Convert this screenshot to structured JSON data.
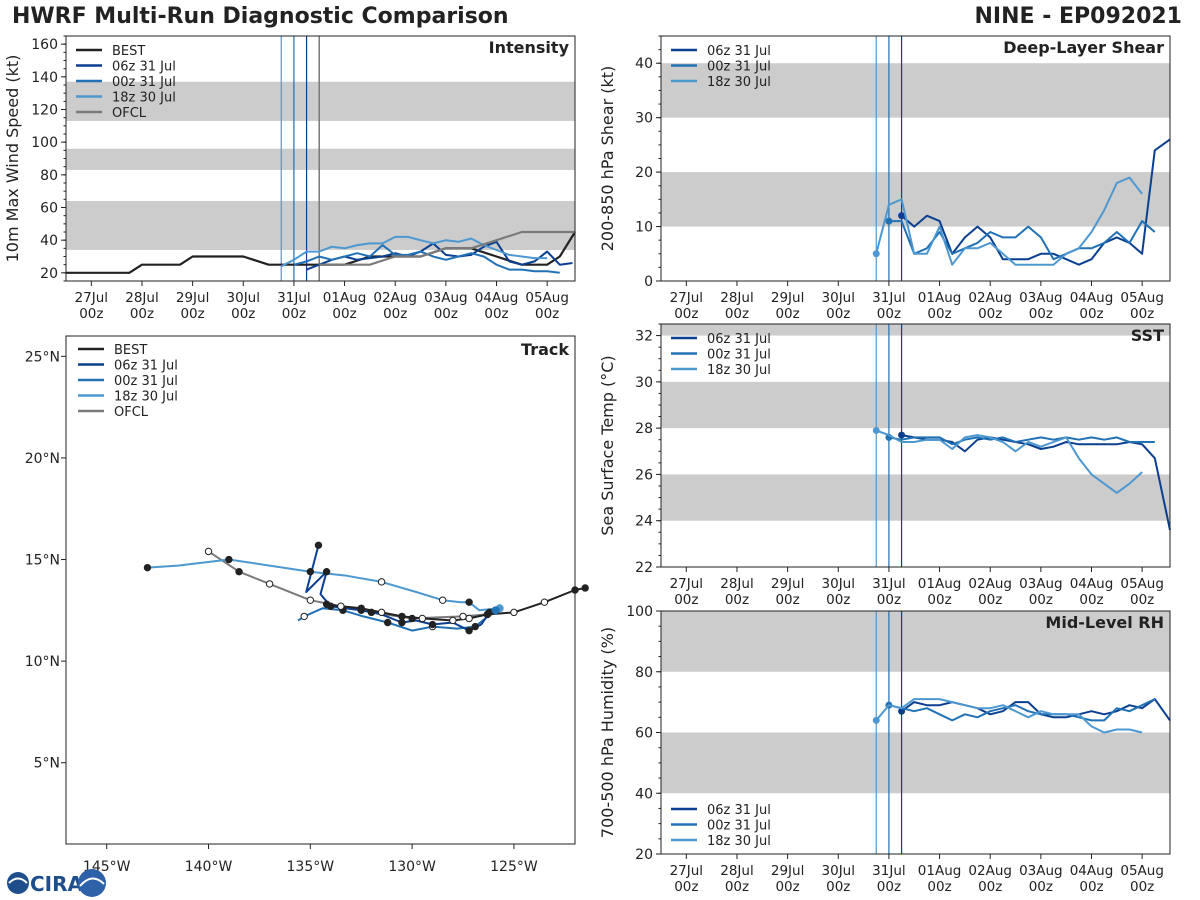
{
  "header": {
    "title": "HWRF Multi-Run Diagnostic Comparison",
    "storm_id": "NINE - EP092021"
  },
  "colors": {
    "BEST": "#222222",
    "06z 31 Jul": "#0b3f8f",
    "00z 31 Jul": "#2171b5",
    "18z 30 Jul": "#4d98d0",
    "OFCL": "#7a7a7a",
    "band": "#cccccc"
  },
  "time_axis": {
    "units": "days since 27Jul 00z",
    "xlim": [
      -0.5,
      9.55
    ],
    "ticks": [
      0,
      1,
      2,
      3,
      4,
      5,
      6,
      7,
      8,
      9
    ],
    "tick_labels": [
      "27Jul\n00z",
      "28Jul\n00z",
      "29Jul\n00z",
      "30Jul\n00z",
      "31Jul\n00z",
      "01Aug\n00z",
      "02Aug\n00z",
      "03Aug\n00z",
      "04Aug\n00z",
      "05Aug\n00z"
    ],
    "init_lines": [
      {
        "run": "18z 30 Jul",
        "t": 3.75
      },
      {
        "run": "00z 31 Jul",
        "t": 4.0
      },
      {
        "run": "06z 31 Jul",
        "t": 4.25
      }
    ],
    "ofcl_line": 4.5
  },
  "chart_data": [
    {
      "type": "line",
      "panel": "intensity",
      "title": "Intensity",
      "ylabel": "10m Max Wind Speed (kt)",
      "ylim": [
        15,
        165
      ],
      "yticks": [
        20,
        40,
        60,
        80,
        100,
        120,
        140,
        160
      ],
      "bands": [
        [
          34,
          64
        ],
        [
          83,
          96
        ],
        [
          113,
          137
        ]
      ],
      "legend": [
        "BEST",
        "06z 31 Jul",
        "00z 31 Jul",
        "18z 30 Jul",
        "OFCL"
      ],
      "series": [
        {
          "name": "BEST",
          "x": [
            -0.5,
            0.75,
            1.0,
            1.75,
            2.0,
            2.5,
            3.0,
            3.5,
            4.0,
            4.5,
            5.0,
            5.5,
            6.0,
            6.5,
            7.0,
            7.5,
            8.0,
            8.5,
            9.0,
            9.25,
            9.55
          ],
          "y": [
            20,
            20,
            25,
            25,
            30,
            30,
            30,
            25,
            25,
            25,
            25,
            30,
            30,
            30,
            35,
            35,
            30,
            25,
            25,
            30,
            45
          ]
        },
        {
          "name": "06z 31 Jul",
          "x": [
            4.25,
            4.5,
            4.75,
            5.0,
            5.25,
            5.5,
            5.75,
            6.0,
            6.25,
            6.5,
            6.75,
            7.0,
            7.25,
            7.5,
            7.75,
            8.0,
            8.25,
            8.5,
            8.75,
            9.0,
            9.25,
            9.5
          ],
          "y": [
            22,
            25,
            28,
            30,
            28,
            29,
            30,
            32,
            30,
            33,
            38,
            31,
            30,
            31,
            36,
            39,
            27,
            25,
            27,
            33,
            25,
            26
          ]
        },
        {
          "name": "00z 31 Jul",
          "x": [
            4.0,
            4.25,
            4.5,
            4.75,
            5.0,
            5.25,
            5.5,
            5.75,
            6.0,
            6.25,
            6.5,
            6.75,
            7.0,
            7.25,
            7.5,
            7.75,
            8.0,
            8.25,
            8.5,
            8.75,
            9.0,
            9.25
          ],
          "y": [
            25,
            27,
            30,
            28,
            30,
            32,
            30,
            37,
            31,
            31,
            33,
            30,
            28,
            30,
            32,
            30,
            25,
            22,
            22,
            21,
            21,
            20
          ]
        },
        {
          "name": "18z 30 Jul",
          "x": [
            3.75,
            4.0,
            4.25,
            4.5,
            4.75,
            5.0,
            5.25,
            5.5,
            5.75,
            6.0,
            6.25,
            6.5,
            6.75,
            7.0,
            7.25,
            7.5,
            7.75,
            8.0,
            8.25,
            8.5,
            8.75,
            9.0
          ],
          "y": [
            24,
            28,
            33,
            33,
            36,
            35,
            37,
            38,
            38,
            42,
            42,
            40,
            38,
            40,
            39,
            41,
            37,
            34,
            31,
            30,
            29,
            29
          ]
        },
        {
          "name": "OFCL",
          "x": [
            4.5,
            5.0,
            5.5,
            6.0,
            6.5,
            7.0,
            7.5,
            8.0,
            8.5,
            9.0,
            9.55
          ],
          "y": [
            25,
            25,
            25,
            30,
            30,
            35,
            35,
            40,
            45,
            45,
            45
          ]
        }
      ]
    },
    {
      "type": "line",
      "panel": "shear",
      "title": "Deep-Layer Shear",
      "ylabel": "200-850 hPa Shear (kt)",
      "ylim": [
        0,
        45
      ],
      "yticks": [
        0,
        10,
        20,
        30,
        40
      ],
      "bands": [
        [
          10,
          20
        ],
        [
          30,
          40
        ]
      ],
      "legend": [
        "06z 31 Jul",
        "00z 31 Jul",
        "18z 30 Jul"
      ],
      "series": [
        {
          "name": "06z 31 Jul",
          "x": [
            4.25,
            4.5,
            4.75,
            5.0,
            5.25,
            5.5,
            5.75,
            6.0,
            6.25,
            6.5,
            6.75,
            7.0,
            7.25,
            7.5,
            7.75,
            8.0,
            8.25,
            8.5,
            8.75,
            9.0,
            9.25,
            9.55
          ],
          "y": [
            12,
            10,
            12,
            11,
            5,
            8,
            10,
            8,
            4,
            4,
            4,
            5,
            5,
            4,
            3,
            4,
            7,
            8,
            7,
            5,
            24,
            26
          ]
        },
        {
          "name": "00z 31 Jul",
          "x": [
            4.0,
            4.25,
            4.5,
            4.75,
            5.0,
            5.25,
            5.5,
            5.75,
            6.0,
            6.25,
            6.5,
            6.75,
            7.0,
            7.25,
            7.5,
            7.75,
            8.0,
            8.25,
            8.5,
            8.75,
            9.0,
            9.25
          ],
          "y": [
            11,
            11,
            5,
            6,
            9,
            5,
            6,
            7,
            9,
            8,
            8,
            10,
            8,
            4,
            5,
            6,
            6,
            7,
            9,
            7,
            11,
            9
          ]
        },
        {
          "name": "18z 30 Jul",
          "x": [
            3.75,
            4.0,
            4.25,
            4.5,
            4.75,
            5.0,
            5.25,
            5.5,
            5.75,
            6.0,
            6.25,
            6.5,
            6.75,
            7.0,
            7.25,
            7.5,
            7.75,
            8.0,
            8.25,
            8.5,
            8.75,
            9.0
          ],
          "y": [
            5,
            14,
            15,
            5,
            5,
            10,
            3,
            6,
            6,
            7,
            5,
            3,
            3,
            3,
            3,
            5,
            6,
            9,
            13,
            18,
            19,
            16
          ]
        }
      ]
    },
    {
      "type": "line",
      "panel": "sst",
      "title": "SST",
      "ylabel": "Sea Surface Temp (°C)",
      "ylim": [
        22,
        32.5
      ],
      "yticks": [
        22,
        24,
        26,
        28,
        30,
        32
      ],
      "bands": [
        [
          24,
          26
        ],
        [
          28,
          30
        ],
        [
          32,
          32.5
        ]
      ],
      "legend": [
        "06z 31 Jul",
        "00z 31 Jul",
        "18z 30 Jul"
      ],
      "series": [
        {
          "name": "06z 31 Jul",
          "x": [
            4.25,
            4.5,
            4.75,
            5.0,
            5.25,
            5.5,
            5.75,
            6.0,
            6.25,
            6.5,
            6.75,
            7.0,
            7.25,
            7.5,
            7.75,
            8.0,
            8.25,
            8.5,
            8.75,
            9.0,
            9.25,
            9.55
          ],
          "y": [
            27.7,
            27.6,
            27.5,
            27.5,
            27.4,
            27.0,
            27.5,
            27.6,
            27.5,
            27.4,
            27.3,
            27.1,
            27.2,
            27.4,
            27.3,
            27.3,
            27.3,
            27.3,
            27.4,
            27.3,
            26.7,
            23.6
          ]
        },
        {
          "name": "00z 31 Jul",
          "x": [
            4.0,
            4.25,
            4.5,
            4.75,
            5.0,
            5.25,
            5.5,
            5.75,
            6.0,
            6.25,
            6.5,
            6.75,
            7.0,
            7.25,
            7.5,
            7.75,
            8.0,
            8.25,
            8.5,
            8.75,
            9.0,
            9.25
          ],
          "y": [
            27.6,
            27.5,
            27.6,
            27.6,
            27.6,
            27.3,
            27.5,
            27.6,
            27.5,
            27.6,
            27.4,
            27.5,
            27.6,
            27.5,
            27.6,
            27.5,
            27.6,
            27.5,
            27.6,
            27.4,
            27.4,
            27.4
          ]
        },
        {
          "name": "18z 30 Jul",
          "x": [
            3.75,
            4.0,
            4.25,
            4.5,
            4.75,
            5.0,
            5.25,
            5.5,
            5.75,
            6.0,
            6.25,
            6.5,
            6.75,
            7.0,
            7.25,
            7.5,
            7.75,
            8.0,
            8.25,
            8.5,
            8.75,
            9.0
          ],
          "y": [
            27.9,
            27.7,
            27.4,
            27.4,
            27.5,
            27.5,
            27.1,
            27.6,
            27.7,
            27.6,
            27.4,
            27.0,
            27.4,
            27.2,
            27.4,
            27.6,
            26.7,
            26.0,
            25.6,
            25.2,
            25.6,
            26.1
          ]
        }
      ]
    },
    {
      "type": "line",
      "panel": "rh",
      "title": "Mid-Level RH",
      "ylabel": "700-500 hPa Humidity (%)",
      "ylim": [
        20,
        100
      ],
      "yticks": [
        20,
        40,
        60,
        80,
        100
      ],
      "bands": [
        [
          40,
          60
        ],
        [
          80,
          100
        ]
      ],
      "legend": [
        "06z 31 Jul",
        "00z 31 Jul",
        "18z 30 Jul"
      ],
      "series": [
        {
          "name": "06z 31 Jul",
          "x": [
            4.25,
            4.5,
            4.75,
            5.0,
            5.25,
            5.5,
            5.75,
            6.0,
            6.25,
            6.5,
            6.75,
            7.0,
            7.25,
            7.5,
            7.75,
            8.0,
            8.25,
            8.5,
            8.75,
            9.0,
            9.25,
            9.55
          ],
          "y": [
            67,
            70,
            69,
            69,
            70,
            69,
            68,
            66,
            67,
            70,
            70,
            66,
            65,
            65,
            66,
            67,
            66,
            67,
            69,
            68,
            71,
            64
          ]
        },
        {
          "name": "00z 31 Jul",
          "x": [
            4.0,
            4.25,
            4.5,
            4.75,
            5.0,
            5.25,
            5.5,
            5.75,
            6.0,
            6.25,
            6.5,
            6.75,
            7.0,
            7.25,
            7.5,
            7.75,
            8.0,
            8.25,
            8.5,
            8.75,
            9.0,
            9.25
          ],
          "y": [
            69,
            68,
            67,
            68,
            66,
            64,
            66,
            65,
            67,
            68,
            69,
            67,
            66,
            66,
            66,
            65,
            64,
            64,
            68,
            67,
            69,
            71
          ]
        },
        {
          "name": "18z 30 Jul",
          "x": [
            3.75,
            4.0,
            4.25,
            4.5,
            4.75,
            5.0,
            5.25,
            5.5,
            5.75,
            6.0,
            6.25,
            6.5,
            6.75,
            7.0,
            7.25,
            7.5,
            7.75,
            8.0,
            8.25,
            8.5,
            8.75,
            9.0
          ],
          "y": [
            64,
            69,
            68,
            71,
            71,
            71,
            70,
            69,
            68,
            68,
            69,
            67,
            65,
            67,
            66,
            66,
            66,
            62,
            60,
            61,
            61,
            60
          ]
        }
      ]
    },
    {
      "type": "scatter",
      "panel": "track",
      "title": "Track",
      "xlim": [
        -147,
        -122
      ],
      "ylim": [
        1,
        26
      ],
      "xticks": [
        -145,
        -140,
        -135,
        -130,
        -125
      ],
      "xtick_labels": [
        "145°W",
        "140°W",
        "135°W",
        "130°W",
        "125°W"
      ],
      "yticks": [
        5,
        10,
        15,
        20,
        25
      ],
      "ytick_labels": [
        "5°N",
        "10°N",
        "15°N",
        "20°N",
        "25°N"
      ],
      "legend": [
        "BEST",
        "06z 31 Jul",
        "00z 31 Jul",
        "18z 30 Jul",
        "OFCL"
      ],
      "series": [
        {
          "name": "BEST",
          "lon": [
            -121.5,
            -122,
            -123.5,
            -125,
            -126.3,
            -127.2,
            -128,
            -129.5,
            -130.5,
            -131.5,
            -132.5,
            -133.5,
            -134.2
          ],
          "lat": [
            13.6,
            13.5,
            12.9,
            12.4,
            12.3,
            12.1,
            12.0,
            12.1,
            12.2,
            12.4,
            12.6,
            12.7,
            12.8
          ],
          "open": [
            false,
            false,
            true,
            true,
            false,
            true,
            true,
            true,
            false,
            true,
            false,
            true,
            false
          ]
        },
        {
          "name": "06z 31 Jul",
          "lon": [
            -126.2,
            -126.6,
            -127.2,
            -128.0,
            -129.0,
            -129.8,
            -130.5,
            -131.5,
            -132.5,
            -133.3,
            -134.0,
            -134.5,
            -134.2,
            -135.2,
            -134.6
          ],
          "lat": [
            12.4,
            11.8,
            11.5,
            11.9,
            11.8,
            12.0,
            11.9,
            12.3,
            12.5,
            12.6,
            12.7,
            13.3,
            14.4,
            13.4,
            15.7
          ],
          "open": [
            false,
            false,
            false,
            false,
            false,
            false,
            false,
            false,
            false,
            false,
            false,
            false,
            false,
            false,
            false
          ]
        },
        {
          "name": "00z 31 Jul",
          "lon": [
            -125.9,
            -126.4,
            -126.9,
            -127.8,
            -129.0,
            -130.0,
            -131.2,
            -132.4,
            -133.4,
            -134.4,
            -135.3,
            -135.6
          ],
          "lat": [
            12.5,
            12.1,
            11.7,
            11.6,
            11.7,
            11.5,
            11.9,
            12.2,
            12.5,
            12.6,
            12.2,
            12.0
          ],
          "open": [
            false,
            false,
            false,
            false,
            true,
            false,
            false,
            false,
            false,
            false,
            true,
            false
          ]
        },
        {
          "name": "18z 30 Jul",
          "lon": [
            -125.7,
            -126.7,
            -127.2,
            -127.6,
            -128.5,
            -129.8,
            -131.5,
            -133.2,
            -135.0,
            -137.0,
            -139.0,
            -141.5,
            -143.0
          ],
          "lat": [
            12.6,
            12.5,
            12.9,
            12.9,
            13.0,
            13.4,
            13.9,
            14.2,
            14.4,
            14.7,
            15.0,
            14.7,
            14.6
          ],
          "open": [
            false,
            false,
            false,
            false,
            true,
            false,
            true,
            false,
            false,
            true,
            false,
            true,
            false
          ]
        },
        {
          "name": "OFCL",
          "lon": [
            -126.3,
            -127.5,
            -130.0,
            -132.0,
            -135.0,
            -137.0,
            -138.5,
            -140.0
          ],
          "lat": [
            12.3,
            12.2,
            12.1,
            12.4,
            13.0,
            13.8,
            14.4,
            15.4
          ],
          "open": [
            false,
            true,
            false,
            false,
            true,
            true,
            false,
            true
          ]
        }
      ]
    }
  ]
}
